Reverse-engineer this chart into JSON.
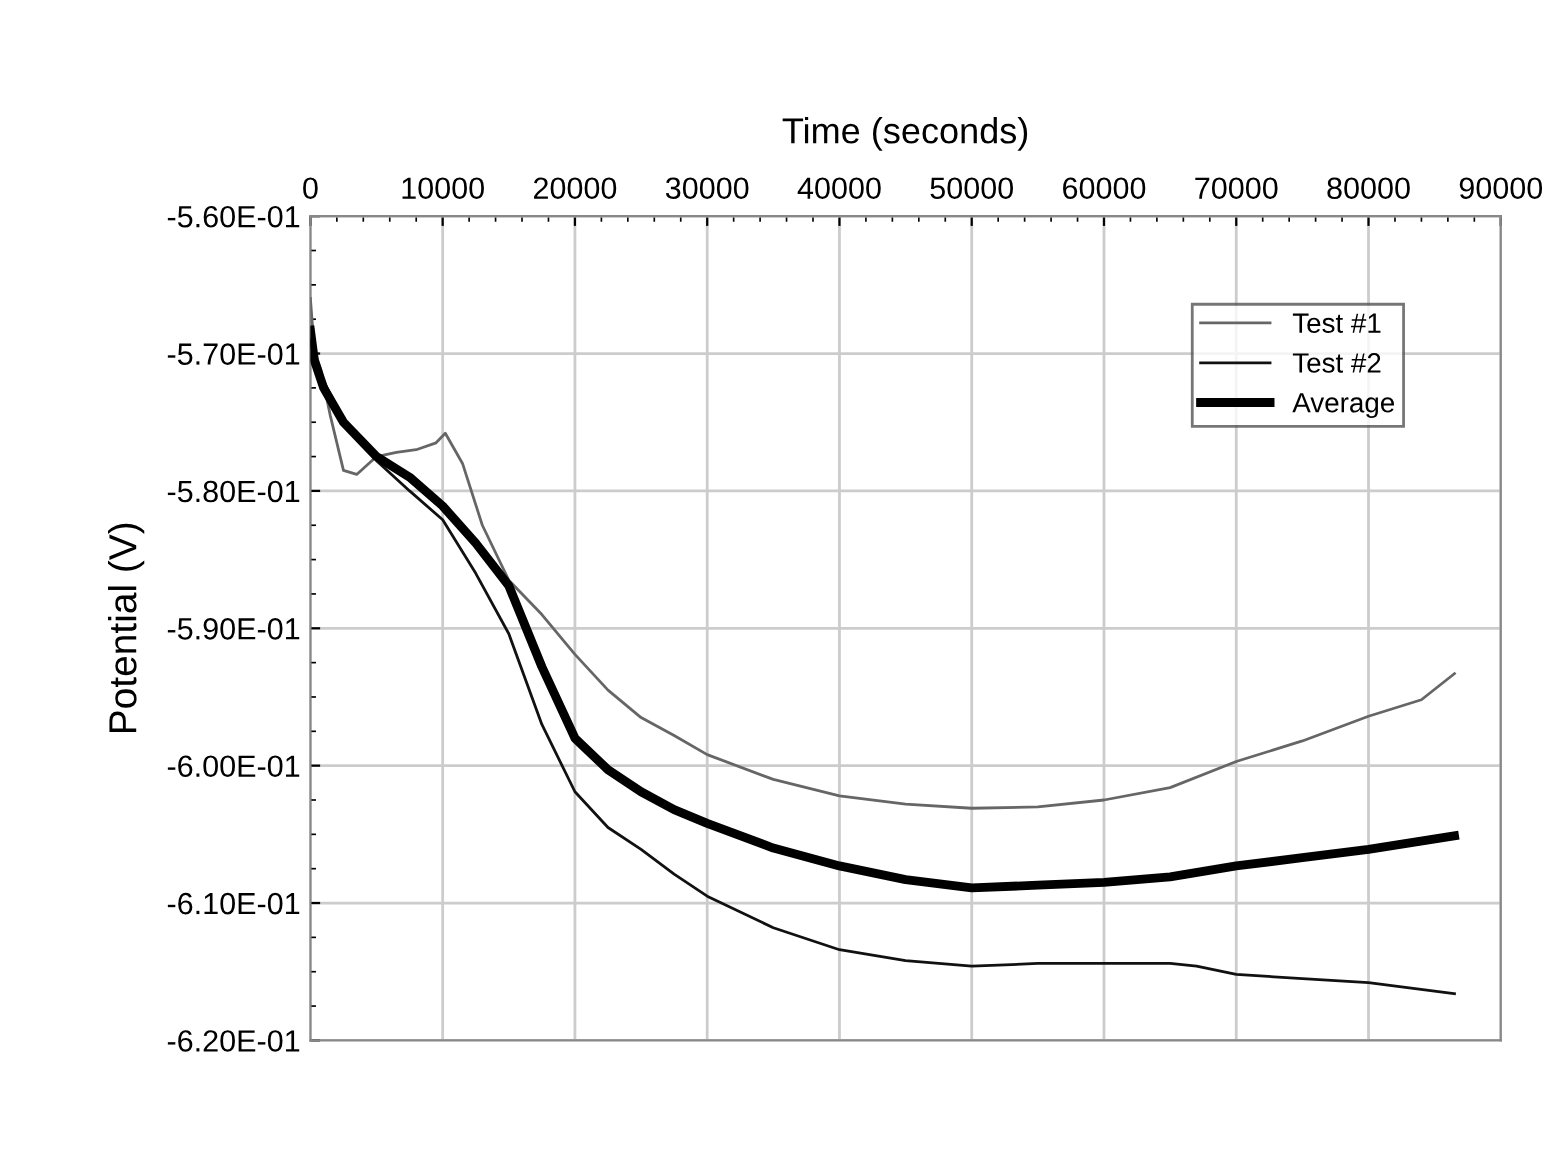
{
  "chart_data": {
    "type": "line",
    "xlabel": "Time (seconds)",
    "ylabel": "Potential (V)",
    "xlim": [
      0,
      90000
    ],
    "xticks": [
      0,
      10000,
      20000,
      30000,
      40000,
      50000,
      60000,
      70000,
      80000,
      90000
    ],
    "ylim": [
      -0.62,
      -0.56
    ],
    "yticks": [
      {
        "value": -0.62,
        "label": "-6.20E-01"
      },
      {
        "value": -0.61,
        "label": "-6.10E-01"
      },
      {
        "value": -0.6,
        "label": "-6.00E-01"
      },
      {
        "value": -0.59,
        "label": "-5.90E-01"
      },
      {
        "value": -0.58,
        "label": "-5.80E-01"
      },
      {
        "value": -0.57,
        "label": "-5.70E-01"
      },
      {
        "value": -0.56,
        "label": "-5.60E-01"
      }
    ],
    "grid": true,
    "legend": "top right",
    "marker": "none",
    "series": [
      {
        "name": "Test #1",
        "color": "#666666",
        "x": [
          0,
          300,
          800,
          1500,
          2500,
          3500,
          5000,
          6500,
          8000,
          9500,
          10200,
          11500,
          13000,
          15000,
          17500,
          20000,
          22500,
          25000,
          27500,
          30000,
          35000,
          40000,
          45000,
          50000,
          55000,
          60000,
          65000,
          70000,
          75000,
          80000,
          84000,
          86500
        ],
        "values": [
          -0.566,
          -0.5698,
          -0.5712,
          -0.5745,
          -0.5785,
          -0.5788,
          -0.5775,
          -0.5772,
          -0.577,
          -0.5765,
          -0.5758,
          -0.578,
          -0.5825,
          -0.5865,
          -0.589,
          -0.5919,
          -0.5945,
          -0.5965,
          -0.5978,
          -0.5992,
          -0.601,
          -0.6022,
          -0.6028,
          -0.6031,
          -0.603,
          -0.6025,
          -0.6016,
          -0.5997,
          -0.5982,
          -0.5964,
          -0.5952,
          -0.5933
        ]
      },
      {
        "name": "Test #2",
        "color": "#111111",
        "line_style": "solid",
        "x": [
          0,
          300,
          1000,
          2500,
          5000,
          7500,
          10000,
          12500,
          15000,
          17500,
          20000,
          22500,
          25000,
          27500,
          30000,
          35000,
          40000,
          45000,
          50000,
          55000,
          60000,
          65000,
          67000,
          70000,
          75000,
          80000,
          86500
        ],
        "values": [
          -0.569,
          -0.5705,
          -0.572,
          -0.5748,
          -0.5778,
          -0.58,
          -0.5821,
          -0.586,
          -0.5904,
          -0.597,
          -0.6019,
          -0.6045,
          -0.6061,
          -0.6079,
          -0.6095,
          -0.6118,
          -0.6134,
          -0.6142,
          -0.6146,
          -0.6144,
          -0.6144,
          -0.6144,
          -0.6146,
          -0.6152,
          -0.6155,
          -0.6158,
          -0.6166
        ]
      },
      {
        "name": "Average",
        "color": "#000000",
        "x": [
          0,
          300,
          1000,
          2500,
          5000,
          7500,
          10000,
          12500,
          15000,
          17500,
          20000,
          22500,
          25000,
          27500,
          30000,
          35000,
          40000,
          45000,
          50000,
          55000,
          60000,
          65000,
          70000,
          75000,
          80000,
          86500
        ],
        "values": [
          -0.5683,
          -0.5705,
          -0.5725,
          -0.575,
          -0.5775,
          -0.579,
          -0.5811,
          -0.5838,
          -0.5869,
          -0.5928,
          -0.598,
          -0.6003,
          -0.6019,
          -0.6032,
          -0.6042,
          -0.606,
          -0.6073,
          -0.6083,
          -0.6089,
          -0.6087,
          -0.6085,
          -0.6081,
          -0.6073,
          -0.6067,
          -0.6061,
          -0.6051
        ]
      }
    ]
  }
}
